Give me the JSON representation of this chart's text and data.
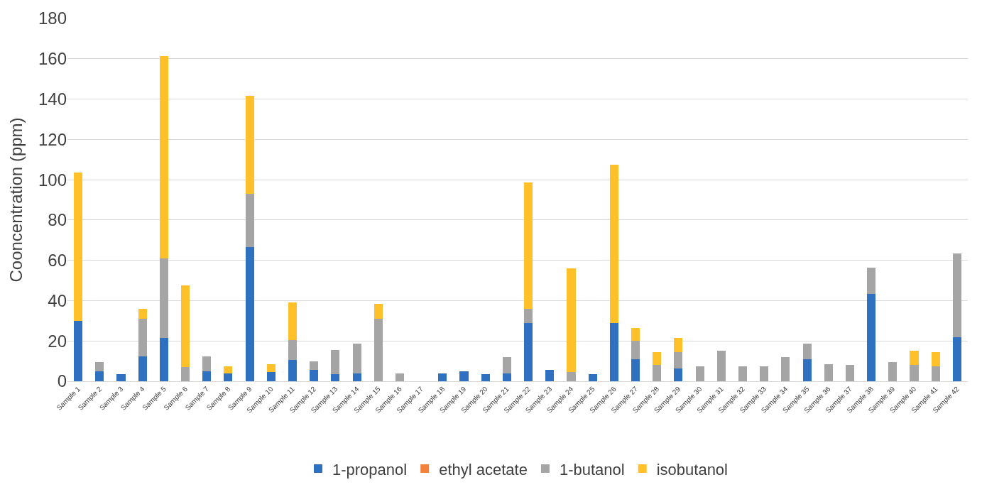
{
  "chart_data": {
    "type": "bar",
    "stacked": true,
    "ylabel": "Cooncentration (ppm)",
    "categories": [
      "Sample 1",
      "Sample 2",
      "Sample 3",
      "Sample 4",
      "Sample 5",
      "Sample 6",
      "Sample 7",
      "Sample 8",
      "Sample 9",
      "Sample 10",
      "Sample 11",
      "Sample 12",
      "Sample 13",
      "Sample 14",
      "Sample 15",
      "Sample 16",
      "Sample 17",
      "Sample 18",
      "Sample 19",
      "Sample 20",
      "Sample 21",
      "Sample 22",
      "Sample 23",
      "Sample 24",
      "Sample 25",
      "Sample 26",
      "Sample 27",
      "Sample 28",
      "Sample 29",
      "Sample 30",
      "Sample 31",
      "Sample 32",
      "Sample 33",
      "Sample 34",
      "Sample 35",
      "Sample 36",
      "Sample 37",
      "Sample 38",
      "Sample 39",
      "Sample 40",
      "Sample 41",
      "Sample 42"
    ],
    "series": [
      {
        "name": "1-propanol",
        "color": "#3070c0",
        "values": [
          30,
          5,
          3.5,
          12.5,
          21.5,
          0,
          5,
          4,
          66.5,
          4.5,
          10.5,
          5.5,
          3.5,
          4,
          0,
          0,
          0,
          4,
          5,
          3.5,
          4,
          29,
          5.5,
          0,
          3.5,
          29,
          11,
          0,
          6.5,
          0,
          0,
          0,
          0,
          0,
          11,
          0,
          0,
          43.5,
          0,
          0,
          0,
          22
        ]
      },
      {
        "name": "ethyl acetate",
        "color": "#f5823a",
        "values": [
          0,
          0,
          0,
          0,
          0,
          0,
          0,
          0,
          0,
          0,
          0,
          0,
          0,
          0,
          0,
          0,
          0,
          0,
          0,
          0,
          0,
          0,
          0,
          0,
          0,
          0,
          0,
          0,
          0,
          0,
          0,
          0,
          0,
          0,
          0,
          0,
          0,
          0,
          0,
          0,
          0,
          0
        ]
      },
      {
        "name": "1-butanol",
        "color": "#a5a5a5",
        "values": [
          0,
          4.5,
          0,
          18.5,
          39.5,
          7,
          7.5,
          0,
          26.5,
          0,
          10,
          4.5,
          12,
          14.5,
          31,
          4,
          0,
          0,
          0,
          0,
          8,
          7,
          0,
          4.5,
          0,
          0,
          9,
          8,
          8,
          7.5,
          15,
          7.5,
          7.5,
          12,
          7.5,
          8.5,
          8,
          13,
          9.5,
          8,
          7.5,
          41.5
        ]
      },
      {
        "name": "isobutanol",
        "color": "#ffc02a",
        "values": [
          73.5,
          0,
          0,
          5,
          100.5,
          40.5,
          0,
          3.5,
          48.5,
          4,
          18.5,
          0,
          0,
          0,
          7.5,
          0,
          0,
          0,
          0,
          0,
          0,
          62.5,
          0,
          51.5,
          0,
          78.5,
          6.5,
          6.5,
          7,
          0,
          0,
          0,
          0,
          0,
          0,
          0,
          0,
          0,
          0,
          7,
          7,
          0
        ]
      }
    ],
    "ylim": [
      0,
      180
    ],
    "yticks": [
      0,
      20,
      40,
      60,
      80,
      100,
      120,
      140,
      160,
      180
    ],
    "grid": "y",
    "legend": "bottom"
  }
}
